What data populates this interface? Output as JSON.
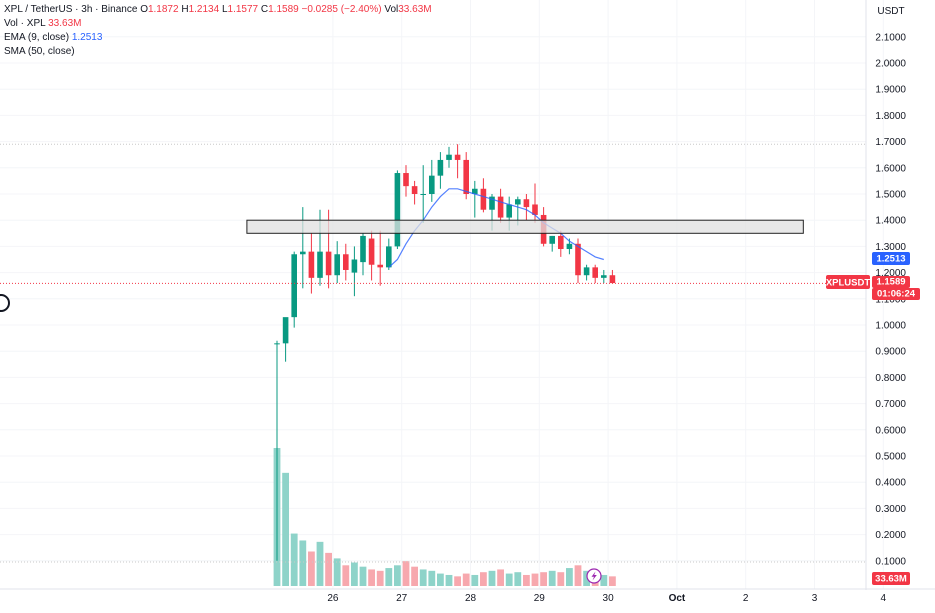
{
  "header": {
    "symbol": "XPL / TetherUS · 3h · Binance",
    "o_label": "O",
    "o": "1.1872",
    "h_label": "H",
    "h": "1.2134",
    "l_label": "L",
    "l": "1.1577",
    "c_label": "C",
    "c": "1.1589",
    "change": "−0.0285 (−2.40%)",
    "vol_label": "Vol",
    "vol": "33.63M",
    "vol_row_label": "Vol · XPL",
    "vol_row_value": "33.63M",
    "ema_label": "EMA (9, close)",
    "ema_value": "1.2513",
    "sma_label": "SMA (50, close)"
  },
  "axis": {
    "unit": "USDT"
  },
  "badges": {
    "ema_price": "1.2513",
    "symbol": "XPLUSDT",
    "last_price": "1.1589",
    "countdown": "01:06:24",
    "volume": "33.63M"
  },
  "colors": {
    "up": "#089981",
    "down": "#f23645",
    "ema": "#2962ff",
    "vol_up": "#8ed3c9",
    "vol_down": "#f7a8ae",
    "zone": "#e0e0e0"
  },
  "icons": {
    "flash": "lightning-icon"
  },
  "chart_data": {
    "type": "candlestick",
    "ylim": [
      0,
      2.15
    ],
    "y_ticks": [
      0.1,
      0.2,
      0.3,
      0.4,
      0.5,
      0.6,
      0.7,
      0.8,
      0.9,
      1.0,
      1.1,
      1.2,
      1.3,
      1.4,
      1.5,
      1.6,
      1.7,
      1.8,
      1.9,
      2.0,
      2.1
    ],
    "x_ticks": [
      {
        "label": "26",
        "t": 6.5
      },
      {
        "label": "27",
        "t": 14.5
      },
      {
        "label": "28",
        "t": 22.5
      },
      {
        "label": "29",
        "t": 30.5
      },
      {
        "label": "30",
        "t": 38.5
      },
      {
        "label": "Oct",
        "t": 46.5
      },
      {
        "label": "2",
        "t": 54.5
      },
      {
        "label": "3",
        "t": 62.5
      },
      {
        "label": "4",
        "t": 70.5
      }
    ],
    "candles": [
      {
        "o": 0.93,
        "h": 0.94,
        "l": 0.1,
        "c": 0.93,
        "v": 1.0
      },
      {
        "o": 0.93,
        "h": 1.02,
        "l": 0.86,
        "c": 1.03,
        "v": 0.82
      },
      {
        "o": 1.03,
        "h": 1.28,
        "l": 0.99,
        "c": 1.27,
        "v": 0.38
      },
      {
        "o": 1.27,
        "h": 1.45,
        "l": 1.14,
        "c": 1.28,
        "v": 0.33
      },
      {
        "o": 1.28,
        "h": 1.35,
        "l": 1.12,
        "c": 1.18,
        "v": 0.25
      },
      {
        "o": 1.18,
        "h": 1.44,
        "l": 1.15,
        "c": 1.28,
        "v": 0.32
      },
      {
        "o": 1.28,
        "h": 1.44,
        "l": 1.14,
        "c": 1.19,
        "v": 0.24
      },
      {
        "o": 1.19,
        "h": 1.32,
        "l": 1.16,
        "c": 1.27,
        "v": 0.2
      },
      {
        "o": 1.27,
        "h": 1.31,
        "l": 1.17,
        "c": 1.21,
        "v": 0.15
      },
      {
        "o": 1.2,
        "h": 1.3,
        "l": 1.11,
        "c": 1.25,
        "v": 0.17
      },
      {
        "o": 1.24,
        "h": 1.35,
        "l": 1.19,
        "c": 1.34,
        "v": 0.14
      },
      {
        "o": 1.33,
        "h": 1.36,
        "l": 1.17,
        "c": 1.23,
        "v": 0.12
      },
      {
        "o": 1.23,
        "h": 1.36,
        "l": 1.15,
        "c": 1.22,
        "v": 0.11
      },
      {
        "o": 1.22,
        "h": 1.33,
        "l": 1.21,
        "c": 1.3,
        "v": 0.13
      },
      {
        "o": 1.3,
        "h": 1.59,
        "l": 1.29,
        "c": 1.58,
        "v": 0.15
      },
      {
        "o": 1.58,
        "h": 1.61,
        "l": 1.49,
        "c": 1.53,
        "v": 0.18
      },
      {
        "o": 1.53,
        "h": 1.55,
        "l": 1.46,
        "c": 1.5,
        "v": 0.14
      },
      {
        "o": 1.5,
        "h": 1.61,
        "l": 1.39,
        "c": 1.5,
        "v": 0.12
      },
      {
        "o": 1.5,
        "h": 1.63,
        "l": 1.47,
        "c": 1.57,
        "v": 0.11
      },
      {
        "o": 1.57,
        "h": 1.66,
        "l": 1.52,
        "c": 1.63,
        "v": 0.09
      },
      {
        "o": 1.63,
        "h": 1.68,
        "l": 1.6,
        "c": 1.65,
        "v": 0.08
      },
      {
        "o": 1.65,
        "h": 1.69,
        "l": 1.56,
        "c": 1.63,
        "v": 0.07
      },
      {
        "o": 1.63,
        "h": 1.66,
        "l": 1.48,
        "c": 1.5,
        "v": 0.09
      },
      {
        "o": 1.5,
        "h": 1.55,
        "l": 1.41,
        "c": 1.52,
        "v": 0.08
      },
      {
        "o": 1.52,
        "h": 1.56,
        "l": 1.43,
        "c": 1.44,
        "v": 0.1
      },
      {
        "o": 1.44,
        "h": 1.5,
        "l": 1.36,
        "c": 1.49,
        "v": 0.11
      },
      {
        "o": 1.49,
        "h": 1.52,
        "l": 1.39,
        "c": 1.41,
        "v": 0.12
      },
      {
        "o": 1.41,
        "h": 1.49,
        "l": 1.36,
        "c": 1.46,
        "v": 0.09
      },
      {
        "o": 1.46,
        "h": 1.49,
        "l": 1.38,
        "c": 1.48,
        "v": 0.1
      },
      {
        "o": 1.48,
        "h": 1.5,
        "l": 1.4,
        "c": 1.45,
        "v": 0.08
      },
      {
        "o": 1.46,
        "h": 1.54,
        "l": 1.39,
        "c": 1.42,
        "v": 0.09
      },
      {
        "o": 1.42,
        "h": 1.45,
        "l": 1.3,
        "c": 1.31,
        "v": 0.1
      },
      {
        "o": 1.31,
        "h": 1.34,
        "l": 1.28,
        "c": 1.34,
        "v": 0.11
      },
      {
        "o": 1.34,
        "h": 1.36,
        "l": 1.26,
        "c": 1.29,
        "v": 0.1
      },
      {
        "o": 1.29,
        "h": 1.33,
        "l": 1.27,
        "c": 1.31,
        "v": 0.13
      },
      {
        "o": 1.31,
        "h": 1.33,
        "l": 1.16,
        "c": 1.19,
        "v": 0.15
      },
      {
        "o": 1.19,
        "h": 1.23,
        "l": 1.17,
        "c": 1.22,
        "v": 0.11
      },
      {
        "o": 1.22,
        "h": 1.23,
        "l": 1.16,
        "c": 1.18,
        "v": 0.09
      },
      {
        "o": 1.18,
        "h": 1.21,
        "l": 1.16,
        "c": 1.19,
        "v": 0.08
      },
      {
        "o": 1.19,
        "h": 1.21,
        "l": 1.16,
        "c": 1.16,
        "v": 0.07
      }
    ],
    "ema": [
      {
        "t": 13,
        "v": 1.22
      },
      {
        "t": 14,
        "v": 1.25
      },
      {
        "t": 15,
        "v": 1.31
      },
      {
        "t": 16,
        "v": 1.36
      },
      {
        "t": 17,
        "v": 1.4
      },
      {
        "t": 18,
        "v": 1.45
      },
      {
        "t": 19,
        "v": 1.49
      },
      {
        "t": 20,
        "v": 1.52
      },
      {
        "t": 21,
        "v": 1.52
      },
      {
        "t": 22,
        "v": 1.51
      },
      {
        "t": 23,
        "v": 1.5
      },
      {
        "t": 24,
        "v": 1.49
      },
      {
        "t": 25,
        "v": 1.48
      },
      {
        "t": 26,
        "v": 1.47
      },
      {
        "t": 27,
        "v": 1.46
      },
      {
        "t": 28,
        "v": 1.45
      },
      {
        "t": 29,
        "v": 1.44
      },
      {
        "t": 30,
        "v": 1.42
      },
      {
        "t": 31,
        "v": 1.39
      },
      {
        "t": 32,
        "v": 1.37
      },
      {
        "t": 33,
        "v": 1.35
      },
      {
        "t": 34,
        "v": 1.32
      },
      {
        "t": 35,
        "v": 1.3
      },
      {
        "t": 36,
        "v": 1.28
      },
      {
        "t": 37,
        "v": 1.26
      },
      {
        "t": 38,
        "v": 1.25
      }
    ],
    "zone": {
      "t_start": -3.5,
      "t_end": 61.2,
      "y_high": 1.4,
      "y_low": 1.35
    },
    "high_line": 1.69,
    "last_line": 1.1589
  }
}
